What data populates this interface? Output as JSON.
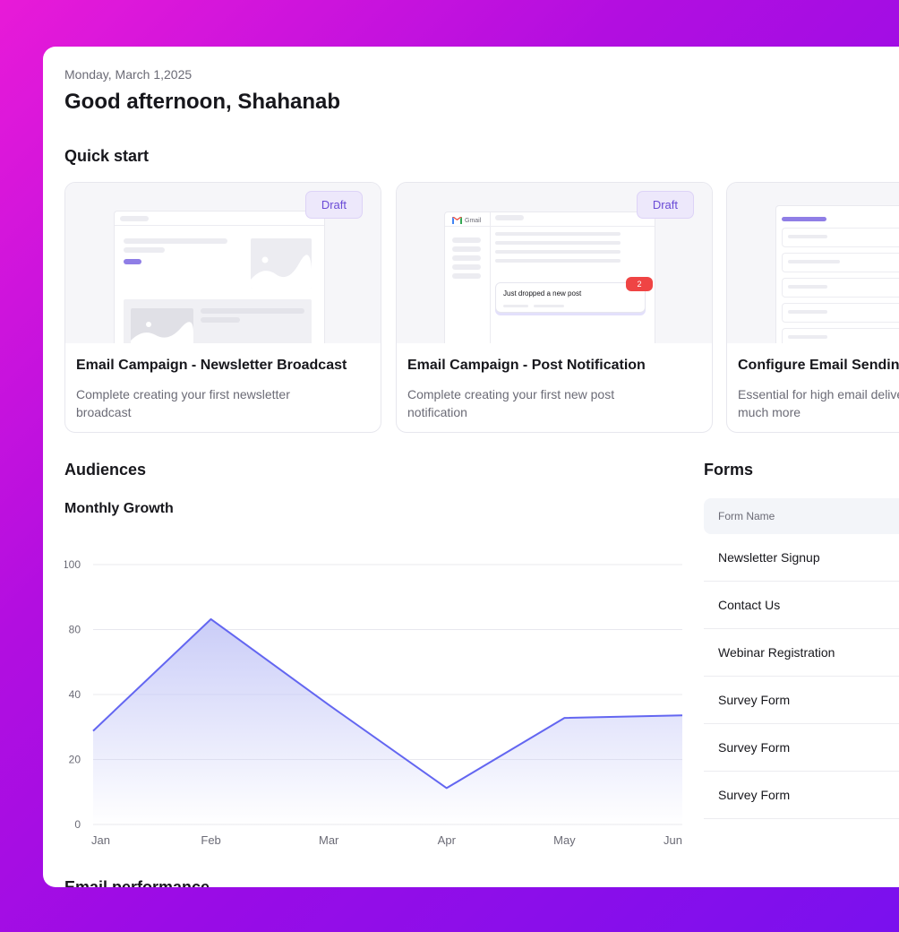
{
  "header": {
    "date": "Monday, March 1,2025",
    "greeting": "Good afternoon, Shahanab"
  },
  "quick_start": {
    "title": "Quick start",
    "cards": [
      {
        "title": "Email Campaign - Newsletter Broadcast",
        "desc": "Complete creating your first newsletter broadcast",
        "badge": "Draft"
      },
      {
        "title": "Email Campaign - Post Notification",
        "desc": "Complete creating your first  new post notification",
        "badge": "Draft",
        "mock_brand": "Gmail",
        "notification_text": "Just dropped a new post",
        "notification_count": "2"
      },
      {
        "title": "Configure Email Sending",
        "desc": "Essential for high email deliverability, inbox, and much more"
      }
    ]
  },
  "audiences": {
    "title": "Audiences",
    "chart_title": "Monthly Growth"
  },
  "chart_data": {
    "type": "area",
    "title": "Monthly Growth",
    "categories": [
      "Jan",
      "Feb",
      "Mar",
      "Apr",
      "May",
      "Jun"
    ],
    "y_ticks": [
      "0",
      "20",
      "40",
      "80",
      "100"
    ],
    "values": [
      36,
      79,
      46,
      14,
      41,
      42
    ],
    "ylim": [
      0,
      100
    ],
    "grid": true,
    "colors": {
      "line": "#6366f1",
      "fill_top": "#c4c7f7"
    }
  },
  "forms": {
    "title": "Forms",
    "column_header": "Form Name",
    "rows": [
      "Newsletter Signup",
      "Contact Us",
      "Webinar Registration",
      "Survey Form",
      "Survey Form",
      "Survey Form"
    ]
  },
  "email_performance": {
    "title": "Email performance"
  }
}
